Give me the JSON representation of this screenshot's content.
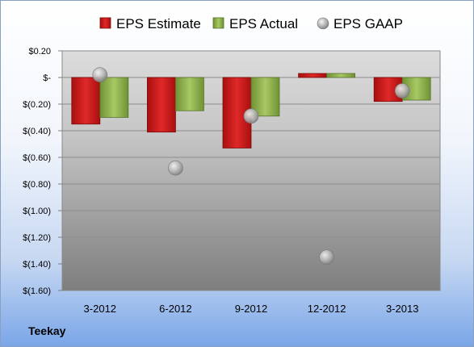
{
  "company": "Teekay",
  "chart_data": {
    "type": "bar",
    "categories": [
      "3-2012",
      "6-2012",
      "9-2012",
      "12-2012",
      "3-2013"
    ],
    "series": [
      {
        "name": "EPS Estimate",
        "values": [
          -0.35,
          -0.41,
          -0.53,
          0.03,
          -0.18
        ],
        "color": "#cc1a1a"
      },
      {
        "name": "EPS Actual",
        "values": [
          -0.3,
          -0.25,
          -0.29,
          0.03,
          -0.17
        ],
        "color": "#8fb34a"
      },
      {
        "name": "EPS GAAP",
        "type": "scatter",
        "values": [
          0.02,
          -0.68,
          -0.29,
          -1.35,
          -0.1
        ],
        "color": "#a8a8a8"
      }
    ],
    "ylim": [
      -1.6,
      0.2
    ],
    "yticks": [
      0.2,
      0,
      -0.2,
      -0.4,
      -0.6,
      -0.8,
      -1.0,
      -1.2,
      -1.4,
      -1.6
    ],
    "ytick_labels": [
      "$0.20",
      "$-",
      "$(0.20)",
      "$(0.40)",
      "$(0.60)",
      "$(0.80)",
      "$(1.00)",
      "$(1.20)",
      "$(1.40)",
      "$(1.60)"
    ],
    "legend": [
      "EPS Estimate",
      "EPS Actual",
      "EPS GAAP"
    ],
    "legend_position": "top",
    "grid": true
  }
}
